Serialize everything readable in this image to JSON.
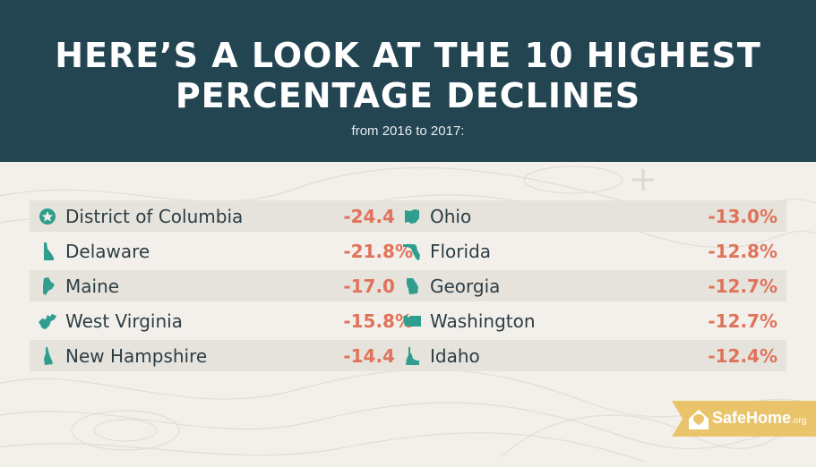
{
  "header": {
    "title_line1": "HERE’S A LOOK AT THE 10 HIGHEST",
    "title_line2": "PERCENTAGE DECLINES",
    "subtitle": "from 2016 to 2017:"
  },
  "rows_left": [
    {
      "state": "District of Columbia",
      "value": "-24.4%",
      "icon": "star-badge-icon"
    },
    {
      "state": "Delaware",
      "value": "-21.8%",
      "icon": "delaware-icon"
    },
    {
      "state": "Maine",
      "value": "-17.0%",
      "icon": "maine-icon"
    },
    {
      "state": "West Virginia",
      "value": "-15.8%",
      "icon": "west-virginia-icon"
    },
    {
      "state": "New Hampshire",
      "value": "-14.4%",
      "icon": "new-hampshire-icon"
    }
  ],
  "rows_right": [
    {
      "state": "Ohio",
      "value": "-13.0%",
      "icon": "ohio-icon"
    },
    {
      "state": "Florida",
      "value": "-12.8%",
      "icon": "florida-icon"
    },
    {
      "state": "Georgia",
      "value": "-12.7%",
      "icon": "georgia-icon"
    },
    {
      "state": "Washington",
      "value": "-12.7%",
      "icon": "washington-icon"
    },
    {
      "state": "Idaho",
      "value": "-12.4%",
      "icon": "idaho-icon"
    }
  ],
  "logo": {
    "text": "SafeHome",
    "suffix": ".org"
  },
  "colors": {
    "header": "#234552",
    "icon": "#2f9e8f",
    "value": "#e0735a",
    "logo": "#e9c46a"
  }
}
